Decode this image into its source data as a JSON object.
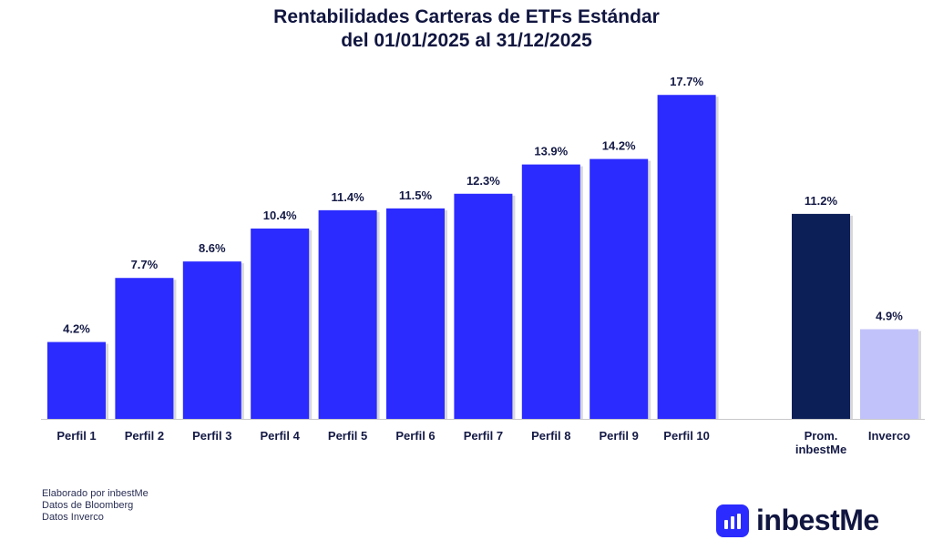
{
  "chart_data": {
    "type": "bar",
    "title": [
      "Rentabilidades Carteras de ETFs Estándar",
      "del 01/01/2025 al 31/12/2025"
    ],
    "categories": [
      "Perfil 1",
      "Perfil 2",
      "Perfil 3",
      "Perfil 4",
      "Perfil 5",
      "Perfil 6",
      "Perfil 7",
      "Perfil 8",
      "Perfil 9",
      "Perfil 10",
      "Prom. inbestMe",
      "Inverco"
    ],
    "values": [
      4.2,
      7.7,
      8.6,
      10.4,
      11.4,
      11.5,
      12.3,
      13.9,
      14.2,
      17.7,
      11.2,
      4.9
    ],
    "data_labels": [
      "4.2%",
      "7.7%",
      "8.6%",
      "10.4%",
      "11.4%",
      "11.5%",
      "12.3%",
      "13.9%",
      "14.2%",
      "17.7%",
      "11.2%",
      "4.9%"
    ],
    "bar_colors": [
      "#2b2bff",
      "#2b2bff",
      "#2b2bff",
      "#2b2bff",
      "#2b2bff",
      "#2b2bff",
      "#2b2bff",
      "#2b2bff",
      "#2b2bff",
      "#2b2bff",
      "#0d1f57",
      "#c2c2fb"
    ],
    "unit": "%",
    "ylim": [
      0,
      18
    ],
    "grid": false,
    "y_axis_visible": false
  },
  "footnotes": [
    "Elaborado por inbestMe",
    "Datos de Bloomberg",
    "Datos Inverco"
  ],
  "logo": {
    "text": "inbestMe",
    "color": "#2b2bff"
  }
}
